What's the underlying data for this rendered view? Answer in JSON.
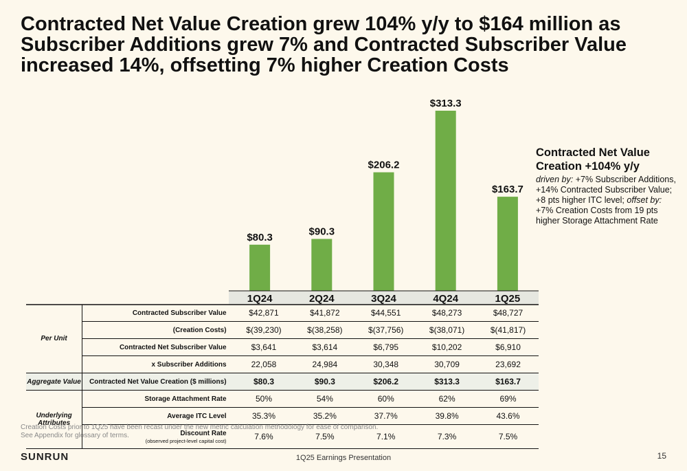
{
  "title": "Contracted Net Value Creation grew 104% y/y to $164 million as Subscriber Additions grew 7% and Contracted Subscriber Value increased 14%, offsetting 7% higher Creation Costs",
  "chart_data": {
    "type": "bar",
    "categories": [
      "1Q24",
      "2Q24",
      "3Q24",
      "4Q24",
      "1Q25"
    ],
    "values": [
      80.3,
      90.3,
      206.2,
      313.3,
      163.7
    ],
    "value_labels": [
      "$80.3",
      "$90.3",
      "$206.2",
      "$313.3",
      "$163.7"
    ],
    "bar_color": "#70ad47",
    "ylim": [
      0,
      313.3
    ]
  },
  "callout": {
    "heading": "Contracted Net Value Creation +104% y/y",
    "driven_by": "driven by:",
    "drivers": "+7% Subscriber Additions, +14% Contracted Subscriber Value; +8 pts higher ITC level;",
    "offset_by": "offset by:",
    "offsets": "+7% Creation Costs from 19 pts higher Storage Attachment Rate"
  },
  "table": {
    "groups": {
      "per_unit": "Per Unit",
      "aggregate": "Aggregate Value",
      "underlying": "Underlying Attributes"
    },
    "rows": [
      {
        "label": "Contracted Subscriber Value",
        "values": [
          "$42,871",
          "$41,872",
          "$44,551",
          "$48,273",
          "$48,727"
        ]
      },
      {
        "label": "(Creation Costs)",
        "values": [
          "$(39,230)",
          "$(38,258)",
          "$(37,756)",
          "$(38,071)",
          "$(41,817)"
        ]
      },
      {
        "label": "Contracted Net Subscriber Value",
        "values": [
          "$3,641",
          "$3,614",
          "$6,795",
          "$10,202",
          "$6,910"
        ]
      },
      {
        "label": "x Subscriber Additions",
        "values": [
          "22,058",
          "24,984",
          "30,348",
          "30,709",
          "23,692"
        ]
      },
      {
        "label": "Contracted Net Value Creation ($ millions)",
        "values": [
          "$80.3",
          "$90.3",
          "$206.2",
          "$313.3",
          "$163.7"
        ]
      },
      {
        "label": "Storage Attachment Rate",
        "values": [
          "50%",
          "54%",
          "60%",
          "62%",
          "69%"
        ]
      },
      {
        "label": "Average ITC Level",
        "values": [
          "35.3%",
          "35.2%",
          "37.7%",
          "39.8%",
          "43.6%"
        ]
      },
      {
        "label": "Discount Rate",
        "sublabel": "(observed project-level capital cost)",
        "values": [
          "7.6%",
          "7.5%",
          "7.1%",
          "7.3%",
          "7.5%"
        ]
      }
    ]
  },
  "footnote": {
    "line1": "Creation Costs prior to 1Q25 have been recast under the new metric calculation methodology for ease of comparison.",
    "line2": "See Appendix for glossary of terms."
  },
  "footer": {
    "logo": "SUNRUN",
    "presentation": "1Q25 Earnings Presentation",
    "page": "15"
  }
}
